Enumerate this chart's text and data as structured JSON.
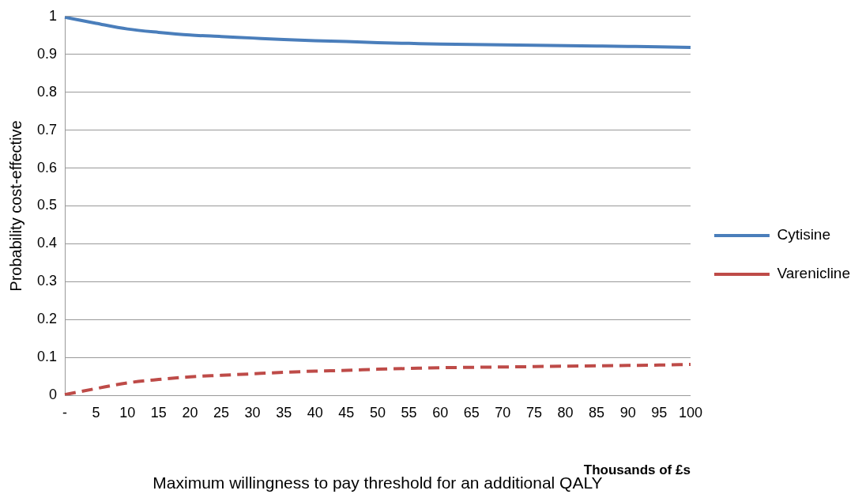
{
  "chart_data": {
    "type": "line",
    "xlabel": "Maximum willingness to pay threshold for an additional QALY",
    "ylabel": "Probability cost-effective",
    "annotations": [
      "Thousands of £s"
    ],
    "categories": [
      "-",
      "5",
      "10",
      "15",
      "20",
      "25",
      "30",
      "35",
      "40",
      "45",
      "50",
      "55",
      "60",
      "65",
      "70",
      "75",
      "80",
      "85",
      "90",
      "95",
      "100"
    ],
    "series": [
      {
        "name": "Cytisine",
        "color": "#4a7ebb",
        "line_style": "solid",
        "values": [
          0.998,
          0.982,
          0.967,
          0.958,
          0.951,
          0.947,
          0.943,
          0.939,
          0.936,
          0.934,
          0.931,
          0.929,
          0.927,
          0.926,
          0.925,
          0.924,
          0.923,
          0.922,
          0.921,
          0.92,
          0.918
        ]
      },
      {
        "name": "Varenicline",
        "color": "#be4b48",
        "line_style": "dashed",
        "values": [
          0.002,
          0.018,
          0.033,
          0.042,
          0.049,
          0.053,
          0.057,
          0.061,
          0.064,
          0.066,
          0.069,
          0.071,
          0.073,
          0.074,
          0.075,
          0.076,
          0.077,
          0.078,
          0.079,
          0.08,
          0.082
        ]
      }
    ],
    "ylim": [
      0,
      1
    ],
    "yticks": [
      0,
      0.1,
      0.2,
      0.3,
      0.4,
      0.5,
      0.6,
      0.7,
      0.8,
      0.9,
      1
    ],
    "grid": "y",
    "legend": "right",
    "marker": "none"
  }
}
